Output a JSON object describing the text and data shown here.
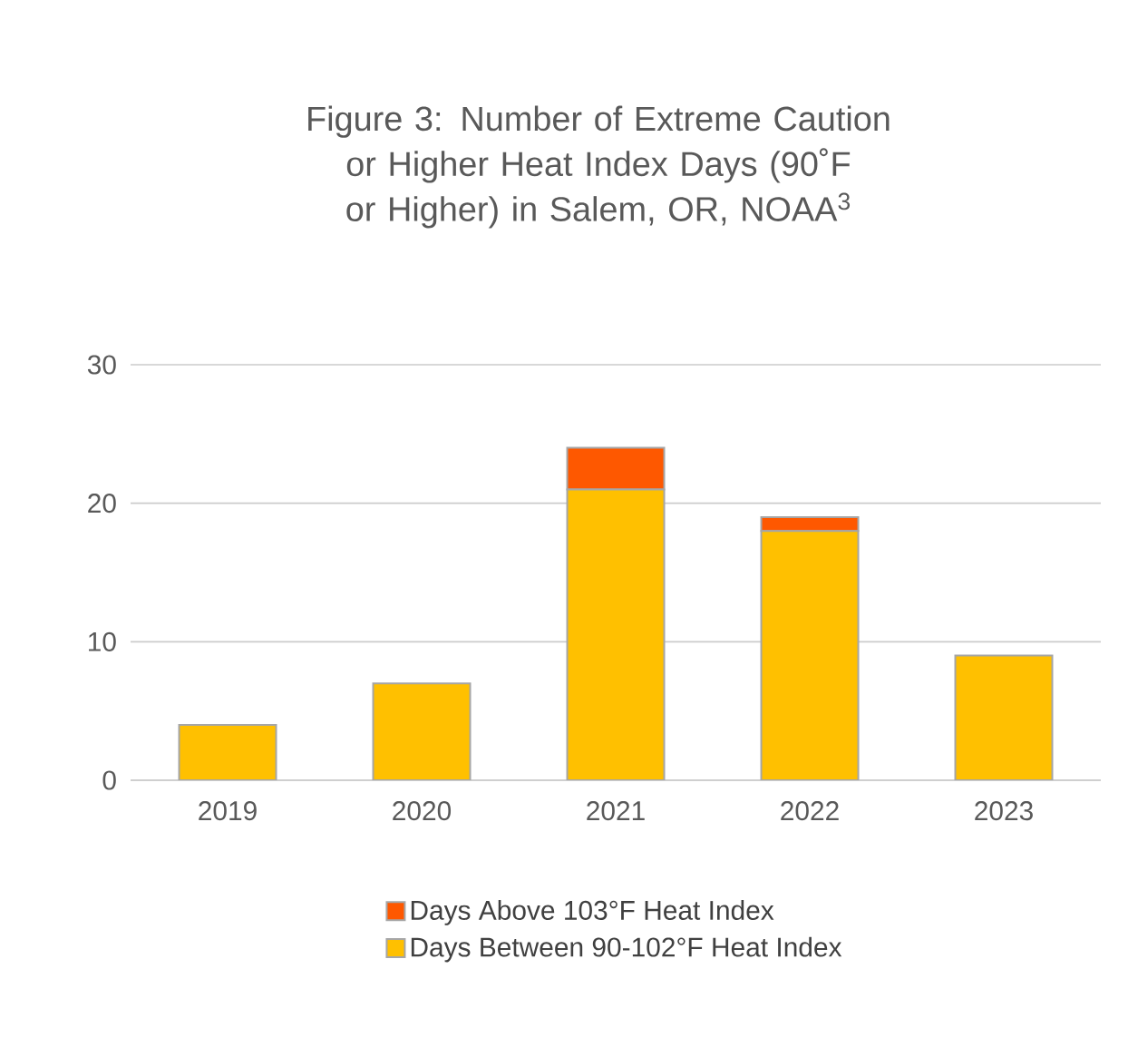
{
  "chart_data": {
    "type": "bar",
    "title": "Figure 3: Number of Extreme Caution or Higher Heat Index Days (90˚F or Higher) in Salem, OR, NOAA$^{3}$",
    "categories": [
      "2019",
      "2020",
      "2021",
      "2022",
      "2023"
    ],
    "stacked": true,
    "series": [
      {
        "name": "Days Between 90-102°F Heat Index",
        "color": "#ffc000",
        "values": [
          4,
          7,
          21,
          18,
          9
        ]
      },
      {
        "name": "Days Above 103°F Heat Index",
        "color": "#fe5800",
        "values": [
          0,
          0,
          3,
          1,
          0
        ]
      }
    ],
    "ylim": [
      0,
      30
    ],
    "yticks": [
      0,
      10,
      20,
      30
    ],
    "grid": "y",
    "legend": "bottom"
  }
}
